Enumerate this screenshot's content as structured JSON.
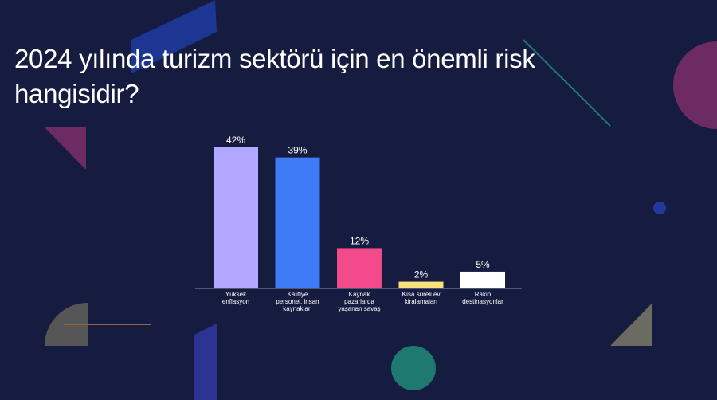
{
  "slide": {
    "title_line1": "2024 yılında turizm sektörü için en önemli risk",
    "title_line2": "hangisidir?"
  },
  "colors": {
    "background": "#161c3f",
    "bar_1": "#b2a8ff",
    "bar_2": "#3d7bf7",
    "bar_3": "#f34a8c",
    "bar_4": "#f5e27a",
    "bar_5": "#ffffff"
  },
  "chart_data": {
    "type": "bar",
    "title": "2024 yılında turizm sektörü için en önemli risk hangisidir?",
    "categories": [
      "Yüksek enflasyon",
      "Kalifiye personel, insan kaynakları",
      "Kaynak pazarlarda yaşanan savaş",
      "Kısa süreli ev kiralamaları",
      "Rakip destinasyonlar"
    ],
    "category_lines": [
      [
        "Yüksek",
        "enflasyon"
      ],
      [
        "Kalifiye",
        "personel, insan",
        "kaynakları"
      ],
      [
        "Kaynak",
        "pazarlarda",
        "yaşanan savaş"
      ],
      [
        "Kısa süreli ev",
        "kiralamaları"
      ],
      [
        "Rakip",
        "destinasyonlar"
      ]
    ],
    "values": [
      42,
      39,
      12,
      2,
      5
    ],
    "data_labels": [
      "42%",
      "39%",
      "12%",
      "2%",
      "5%"
    ],
    "unit": "%",
    "ylim": [
      0,
      42
    ],
    "grid": false,
    "legend": "none"
  }
}
